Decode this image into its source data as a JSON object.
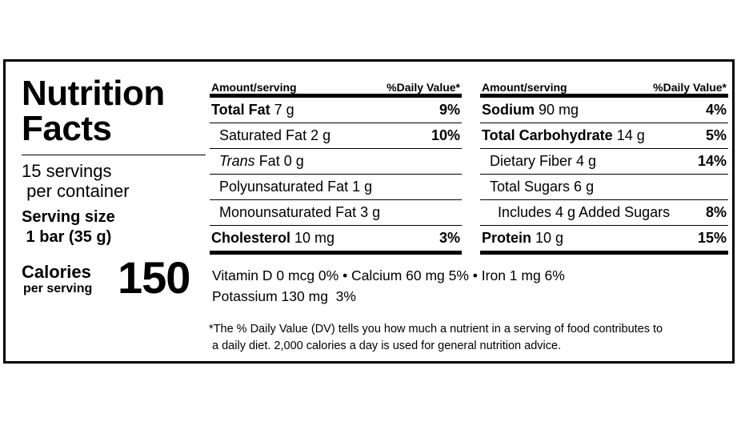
{
  "label": {
    "title_line1": "Nutrition",
    "title_line2": "Facts",
    "servings_line1": "15 servings",
    "servings_line2": " per container",
    "serving_size_label": "Serving size",
    "serving_size_value": " 1 bar (35 g)",
    "calories_label": "Calories",
    "calories_sub": "per serving",
    "calories_value": "150"
  },
  "columns": [
    {
      "header_left": "Amount/serving",
      "header_right": "%Daily Value*",
      "rows": [
        {
          "name": "Total Fat",
          "amount": " 7 g",
          "dv": "9%"
        },
        {
          "name": "Saturated Fat 2 g",
          "dv": "10%"
        },
        {
          "name_italic": "Trans",
          "name_rest": " Fat 0 g"
        },
        {
          "name": "Polyunsaturated Fat 1 g"
        },
        {
          "name": "Monounsaturated Fat 3 g"
        },
        {
          "name": "Cholesterol",
          "amount": " 10 mg",
          "dv": "3%"
        }
      ]
    },
    {
      "header_left": "Amount/serving",
      "header_right": "%Daily Value*",
      "rows": [
        {
          "name": "Sodium",
          "amount": " 90 mg",
          "dv": "4%"
        },
        {
          "name": "Total Carbohydrate",
          "amount": " 14 g",
          "dv": "5%"
        },
        {
          "name": "Dietary Fiber 4 g",
          "dv": "14%"
        },
        {
          "name": "Total Sugars 6 g"
        },
        {
          "name": "Includes 4 g Added Sugars",
          "dv": "8%"
        },
        {
          "name": "Protein",
          "amount": " 10 g",
          "dv": "15%"
        }
      ]
    }
  ],
  "vitamins": {
    "line1": "Vitamin D 0 mcg 0% • Calcium 60 mg 5% • Iron 1 mg 6%",
    "line2": "Potassium 130 mg  3%"
  },
  "footnote": {
    "line1": "*The % Daily Value (DV) tells you how much a nutrient in a serving of food contributes to",
    "line2": " a daily diet. 2,000 calories a day is used for general nutrition advice."
  }
}
